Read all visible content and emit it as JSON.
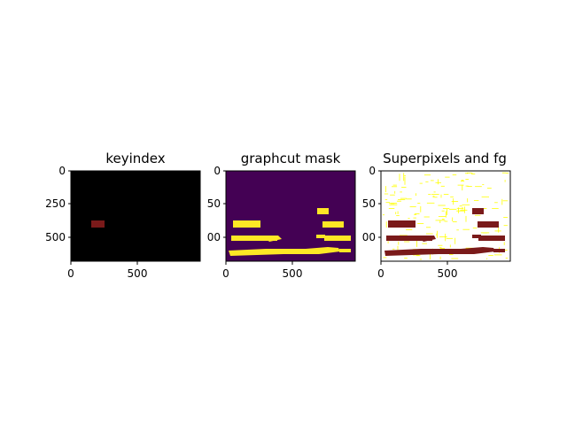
{
  "panels": [
    {
      "title": "keyindex",
      "yticks": [
        "0",
        "250",
        "500"
      ],
      "xticks": [
        "0",
        "500"
      ],
      "background": "#000000",
      "mark_color": "#7a1a1a"
    },
    {
      "title": "graphcut mask",
      "yticks": [
        "0",
        "50",
        "00"
      ],
      "xticks": [
        "0",
        "500"
      ],
      "background": "#440154",
      "mark_color": "#fde725"
    },
    {
      "title": "Superpixels and fg",
      "yticks": [
        "0",
        "50",
        "00"
      ],
      "xticks": [
        "0",
        "500"
      ],
      "background": "#ffffff",
      "mark_color": "#7a1a1a",
      "boundary_color": "#ffff00"
    }
  ]
}
